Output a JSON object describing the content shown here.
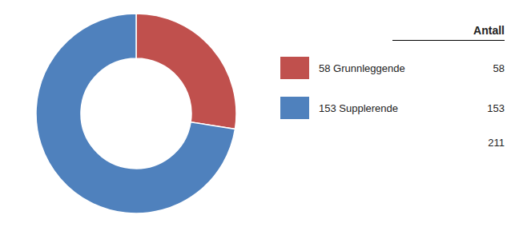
{
  "chart_data": {
    "type": "donut",
    "categories": [
      "58 Grunnleggende",
      "153 Supplerende"
    ],
    "values": [
      58,
      153
    ],
    "colors": [
      "#c0504d",
      "#4f81bd"
    ],
    "legend_header": "Antall",
    "total": 211
  }
}
